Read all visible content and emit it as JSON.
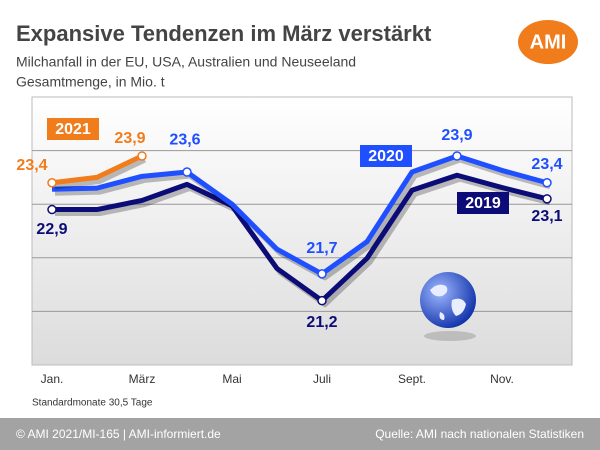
{
  "chart_data": {
    "type": "line",
    "title": "Expansive Tendenzen im März verstärkt",
    "subtitle": [
      "Milchanfall in der EU, USA, Australien und Neuseeland",
      "Gesamtmenge, in Mio. t"
    ],
    "logo": "AMI",
    "note": "Standardmonate 30,5 Tage",
    "footer_left": "© AMI 2021/MI-165 | AMI-informiert.de",
    "footer_right": "Quelle: AMI nach nationalen Statistiken",
    "categories": [
      "Jan.",
      null,
      "März",
      null,
      "Mai",
      null,
      "Juli",
      null,
      "Sept.",
      null,
      "Nov.",
      null
    ],
    "ylim": [
      20,
      25
    ],
    "yticks": [
      21,
      22,
      23,
      24
    ],
    "grid": true,
    "series": [
      {
        "name": "2019",
        "color": "#0c0c78",
        "values": [
          22.9,
          22.9,
          23.07,
          23.37,
          22.97,
          21.8,
          21.2,
          21.99,
          23.26,
          23.54,
          23.31,
          23.1
        ],
        "value_labels": [
          "22,9",
          null,
          null,
          null,
          null,
          null,
          "21,2",
          null,
          null,
          null,
          null,
          "23,1"
        ]
      },
      {
        "name": "2020",
        "color": "#1f4fff",
        "values": [
          23.28,
          23.3,
          23.52,
          23.6,
          23.0,
          22.16,
          21.7,
          22.3,
          23.6,
          23.9,
          23.63,
          23.4
        ],
        "value_labels": [
          null,
          null,
          null,
          "23,6",
          null,
          null,
          "21,7",
          null,
          null,
          "23,9",
          null,
          "23,4"
        ]
      },
      {
        "name": "2021",
        "color": "#f07c1c",
        "values": [
          23.4,
          23.5,
          23.9,
          null,
          null,
          null,
          null,
          null,
          null,
          null,
          null,
          null
        ],
        "value_labels": [
          "23,4",
          null,
          "23,9",
          null,
          null,
          null,
          null,
          null,
          null,
          null,
          null,
          null
        ]
      }
    ]
  }
}
